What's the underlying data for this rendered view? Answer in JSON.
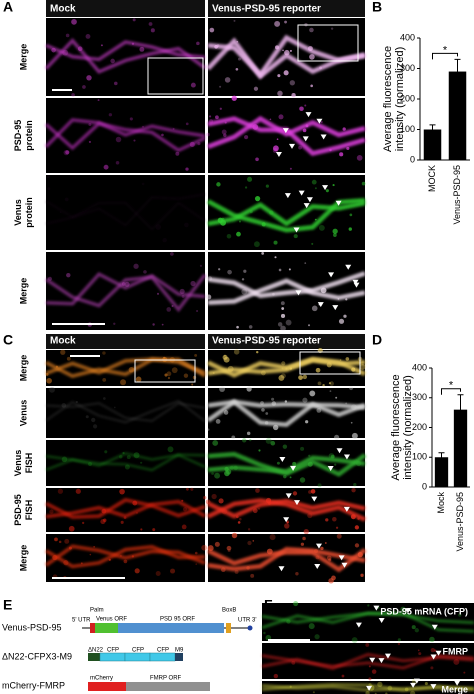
{
  "panel_labels": [
    "A",
    "B",
    "C",
    "D",
    "E",
    "F"
  ],
  "panel_a": {
    "columns": [
      "Mock",
      "Venus-PSD-95 reporter"
    ],
    "rows": [
      [
        "Merge"
      ],
      [
        "PSD-95",
        "protein"
      ],
      [
        "Venus",
        "protein"
      ],
      [
        "Merge"
      ]
    ]
  },
  "panel_c": {
    "columns": [
      "Mock",
      "Venus-PSD-95 reporter"
    ],
    "rows": [
      [
        "Merge"
      ],
      [
        "Venus"
      ],
      [
        "Venus",
        "FISH"
      ],
      [
        "PSD-95",
        "FISH"
      ],
      [
        "Merge"
      ]
    ]
  },
  "panel_e": {
    "constructs": [
      "Venus-PSD-95",
      "ΔN22-CFPX3-M9",
      "mCherry-FMRP"
    ],
    "labels": {
      "palm": "Palm",
      "utr5": "5' UTR",
      "venus": "Venus ORF",
      "psd95": "PSD 95 ORF",
      "boxb": "BoxB",
      "utr3": "UTR 3'",
      "dn22": "ΔN22",
      "cfp": "CFP",
      "m9": "M9",
      "mcherry": "mCherry",
      "fmrp": "FMRP ORF"
    }
  },
  "panel_f": {
    "rows": [
      "PSD-95 mRNA (CFP)",
      "FMRP",
      "Merge"
    ]
  },
  "chart_data": [
    {
      "type": "bar",
      "y_label": [
        "Average fluorescence",
        "intensity (normalized)"
      ],
      "categories": [
        "MOCK",
        "Venus-PSD-95"
      ],
      "values": [
        100,
        290
      ],
      "errors": [
        15,
        40
      ],
      "color": "#000000",
      "ylim": [
        0,
        400
      ],
      "yticks": [
        0,
        100,
        200,
        300,
        400
      ],
      "annotation": "*"
    },
    {
      "type": "bar",
      "y_label": [
        "Average fluorescence",
        "intensity (normalized)"
      ],
      "categories": [
        "Mock",
        "Venus-PSD-95"
      ],
      "values": [
        100,
        260
      ],
      "errors": [
        15,
        50
      ],
      "color": "#000000",
      "ylim": [
        0,
        400
      ],
      "yticks": [
        0,
        100,
        200,
        300,
        400
      ],
      "annotation": "*"
    }
  ]
}
